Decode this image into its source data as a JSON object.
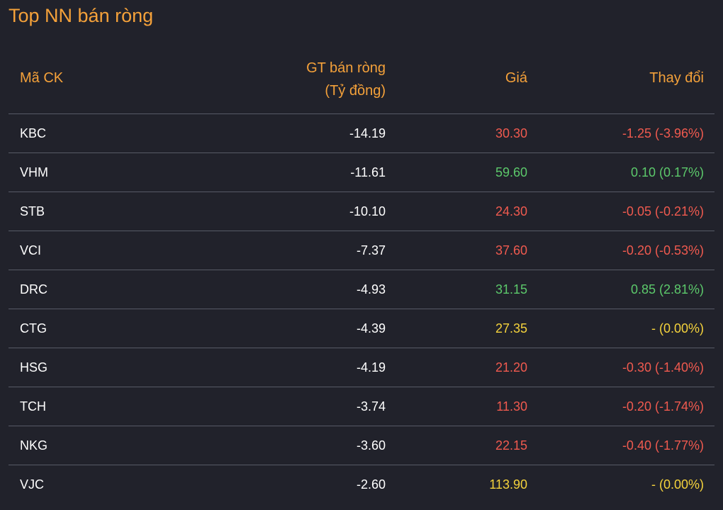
{
  "title": "Top NN bán ròng",
  "headers": {
    "code": "Mã CK",
    "value_line1": "GT bán ròng",
    "value_line2": "(Tỷ đồng)",
    "price": "Giá",
    "change": "Thay đổi"
  },
  "colors": {
    "background": "#21222b",
    "header": "#f4a13a",
    "up": "#5cc96b",
    "down": "#f05a4f",
    "reference": "#f5d33c",
    "divider": "#575a66"
  },
  "rows": [
    {
      "code": "KBC",
      "value": "-14.19",
      "price": "30.30",
      "change": "-1.25 (-3.96%)",
      "trend": "down"
    },
    {
      "code": "VHM",
      "value": "-11.61",
      "price": "59.60",
      "change": "0.10 (0.17%)",
      "trend": "up"
    },
    {
      "code": "STB",
      "value": "-10.10",
      "price": "24.30",
      "change": "-0.05 (-0.21%)",
      "trend": "down"
    },
    {
      "code": "VCI",
      "value": "-7.37",
      "price": "37.60",
      "change": "-0.20 (-0.53%)",
      "trend": "down"
    },
    {
      "code": "DRC",
      "value": "-4.93",
      "price": "31.15",
      "change": "0.85 (2.81%)",
      "trend": "up"
    },
    {
      "code": "CTG",
      "value": "-4.39",
      "price": "27.35",
      "change": "- (0.00%)",
      "trend": "ref"
    },
    {
      "code": "HSG",
      "value": "-4.19",
      "price": "21.20",
      "change": "-0.30 (-1.40%)",
      "trend": "down"
    },
    {
      "code": "TCH",
      "value": "-3.74",
      "price": "11.30",
      "change": "-0.20 (-1.74%)",
      "trend": "down"
    },
    {
      "code": "NKG",
      "value": "-3.60",
      "price": "22.15",
      "change": "-0.40 (-1.77%)",
      "trend": "down"
    },
    {
      "code": "VJC",
      "value": "-2.60",
      "price": "113.90",
      "change": "- (0.00%)",
      "trend": "ref"
    }
  ]
}
